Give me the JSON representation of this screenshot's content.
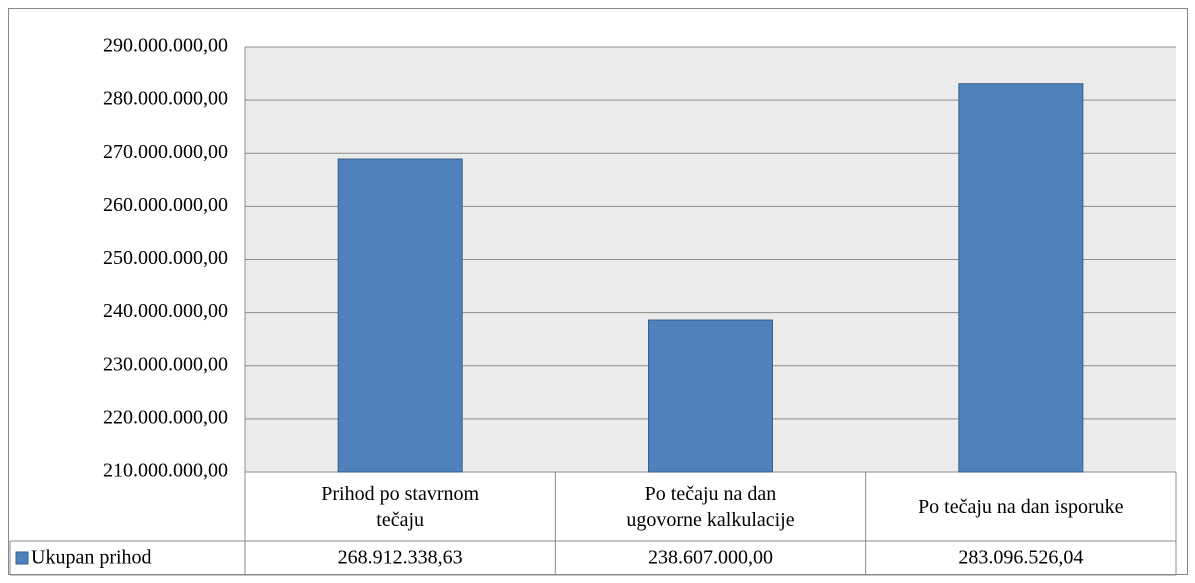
{
  "chart_data": {
    "type": "bar",
    "categories": [
      "Prihod po stavrnom tečaju",
      "Po tečaju na dan ugovorne kalkulacije",
      "Po tečaju na dan isporuke"
    ],
    "series": [
      {
        "name": "Ukupan prihod",
        "color": "#4f81bd",
        "values": [
          268912338.63,
          238607000.0,
          283096526.04
        ],
        "value_labels": [
          "268.912.338,63",
          "238.607.000,00",
          "283.096.526,04"
        ]
      }
    ],
    "ylim": [
      210000000,
      290000000
    ],
    "yticks": [
      {
        "value": 210000000,
        "label": "210.000.000,00"
      },
      {
        "value": 220000000,
        "label": "220.000.000,00"
      },
      {
        "value": 230000000,
        "label": "230.000.000,00"
      },
      {
        "value": 240000000,
        "label": "240.000.000,00"
      },
      {
        "value": 250000000,
        "label": "250.000.000,00"
      },
      {
        "value": 260000000,
        "label": "260.000.000,00"
      },
      {
        "value": 270000000,
        "label": "270.000.000,00"
      },
      {
        "value": 280000000,
        "label": "280.000.000,00"
      },
      {
        "value": 290000000,
        "label": "290.000.000,00"
      }
    ],
    "grid": true,
    "data_table": true
  }
}
